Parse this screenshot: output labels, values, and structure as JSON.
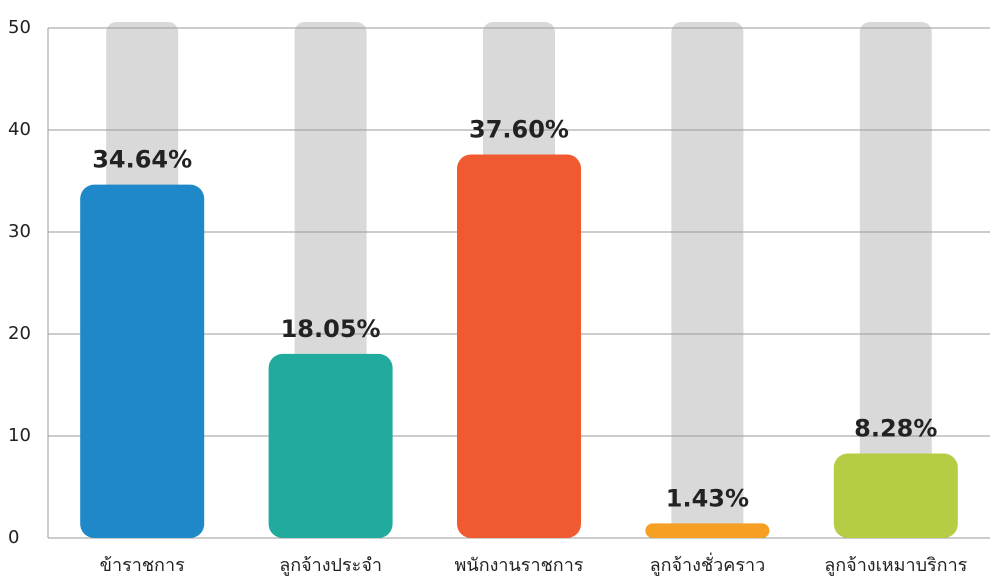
{
  "chart_data": {
    "type": "bar",
    "categories": [
      "ข้าราชการ",
      "ลูกจ้างประจำ",
      "พนักงานราชการ",
      "ลูกจ้างชั่วคราว",
      "ลูกจ้างเหมาบริการ"
    ],
    "values": [
      34.64,
      18.05,
      37.6,
      1.43,
      8.28
    ],
    "value_labels": [
      "34.64%",
      "18.05%",
      "37.60%",
      "1.43%",
      "8.28%"
    ],
    "colors": [
      "#1e88c8",
      "#20ab9c",
      "#f15a30",
      "#f5a023",
      "#b5cc45"
    ],
    "ylim": [
      0,
      50
    ],
    "yticks": [
      0,
      10,
      20,
      30,
      40,
      50
    ],
    "grid": true
  }
}
